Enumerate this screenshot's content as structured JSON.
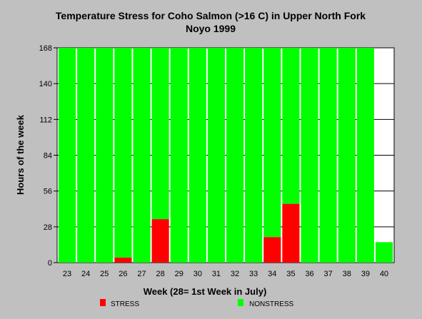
{
  "chart_data": {
    "type": "bar",
    "stacked": true,
    "title": "Temperature Stress for Coho Salmon (>16 C) in Upper North Fork",
    "subtitle": "Noyo 1999",
    "xlabel": "Week (28= 1st Week in July)",
    "ylabel": "Hours of the week",
    "categories": [
      "23",
      "24",
      "25",
      "26",
      "27",
      "28",
      "29",
      "30",
      "31",
      "32",
      "33",
      "34",
      "35",
      "36",
      "37",
      "38",
      "39",
      "40"
    ],
    "series": [
      {
        "name": "STRESS",
        "color": "#ff0000",
        "values": [
          0,
          0,
          0,
          4,
          0,
          34,
          0,
          0,
          0,
          0,
          0,
          20,
          46,
          0,
          0,
          0,
          0,
          0
        ]
      },
      {
        "name": "NONSTRESS",
        "color": "#00ff00",
        "values": [
          168,
          168,
          168,
          164,
          168,
          134,
          168,
          168,
          168,
          168,
          168,
          148,
          122,
          168,
          168,
          168,
          168,
          16
        ]
      }
    ],
    "yticks": [
      "0",
      "28",
      "56",
      "84",
      "112",
      "140",
      "168"
    ],
    "ylim": [
      0,
      168
    ],
    "grid": true,
    "legend_position": "bottom"
  }
}
